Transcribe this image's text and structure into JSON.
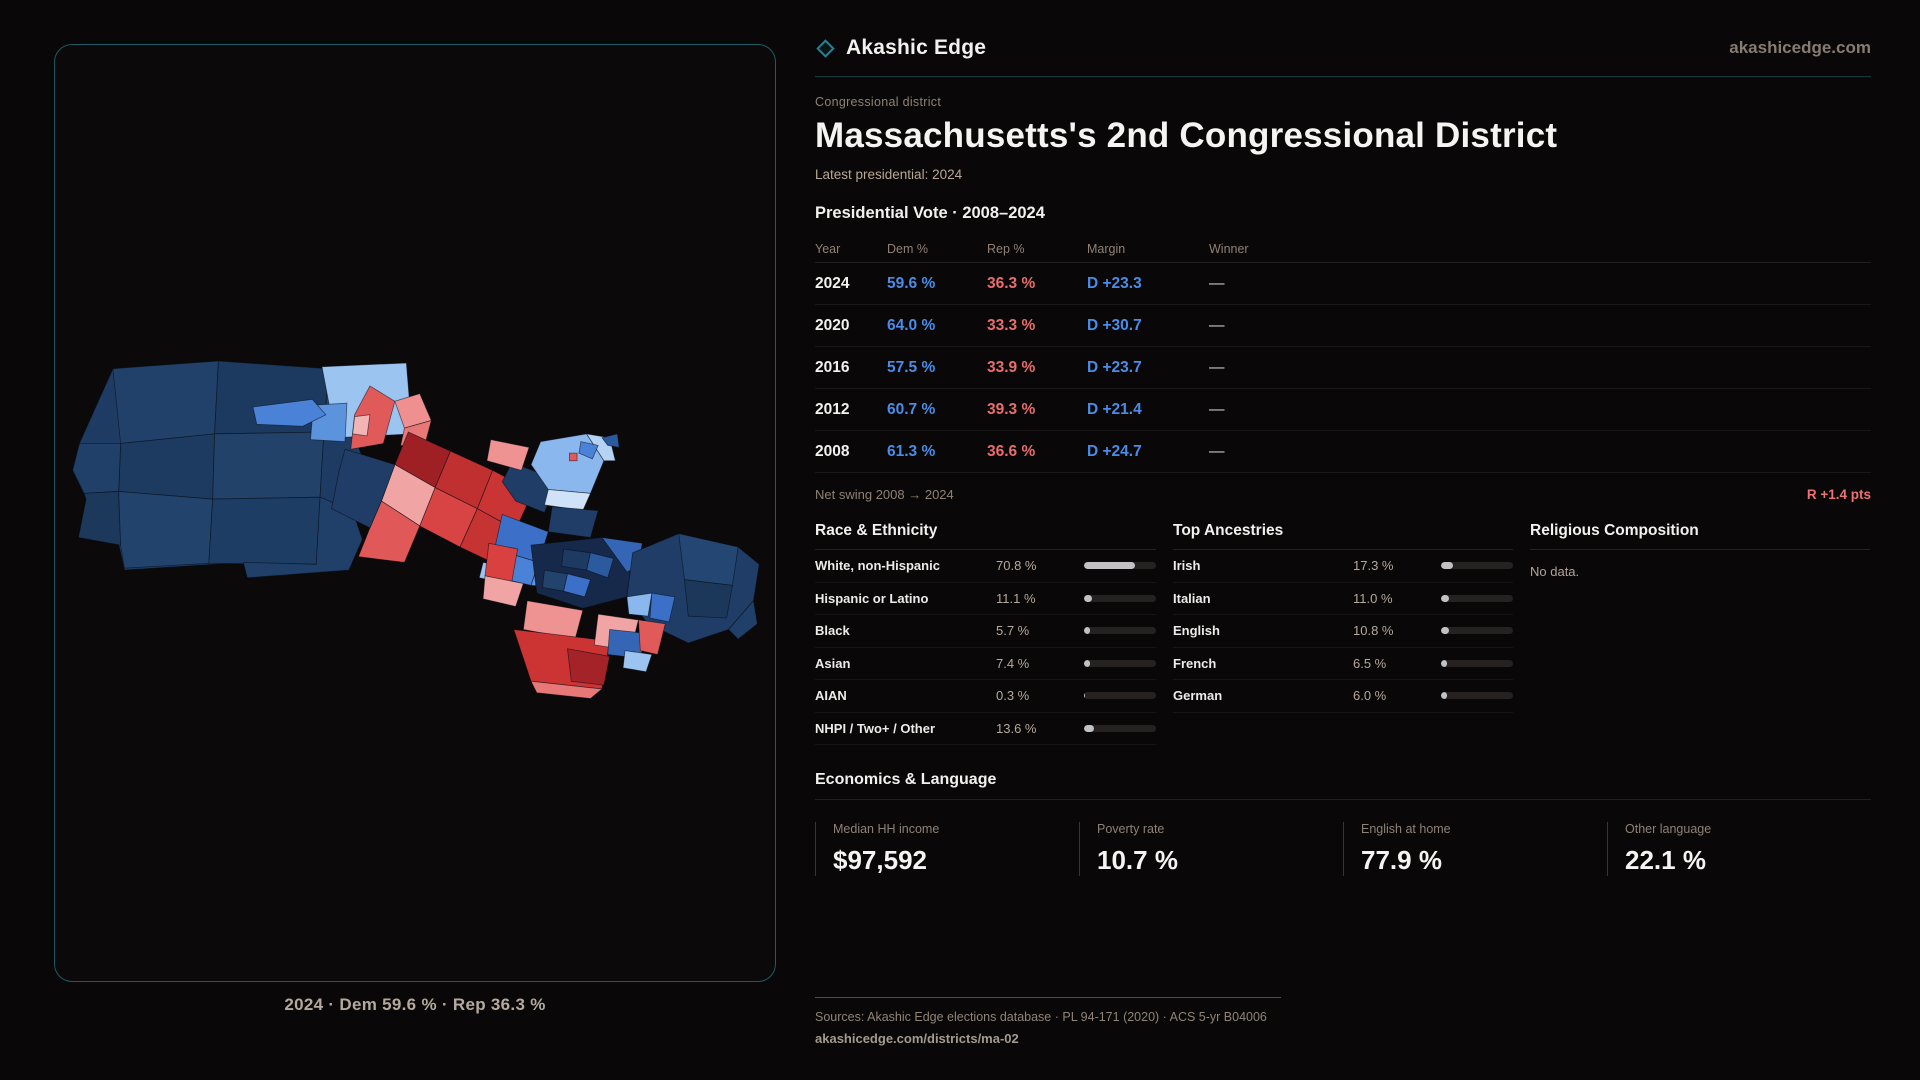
{
  "brand": {
    "name": "Akashic Edge",
    "site": "akashicedge.com",
    "accent": "#2a7f8f"
  },
  "district": {
    "eyebrow": "Congressional district",
    "title": "Massachusetts's 2nd Congressional District",
    "latest": "Latest presidential: 2024"
  },
  "map": {
    "caption": "2024 · Dem 59.6 % · Rep 36.3 %",
    "palette": {
      "dem_dark": "#1e3c63",
      "dem_mid": "#4a82d8",
      "dem_light": "#9cc4f0",
      "rep_dark": "#9e2025",
      "rep_mid": "#cc3333",
      "rep_light": "#f0a4a4",
      "panel_border": "#1d5a66"
    }
  },
  "vote_table": {
    "title": "Presidential Vote · 2008–2024",
    "columns": {
      "year": "Year",
      "dem": "Dem %",
      "rep": "Rep %",
      "margin": "Margin",
      "winner": "Winner"
    },
    "rows": [
      {
        "year": "2024",
        "dem": "59.6 %",
        "rep": "36.3 %",
        "margin": "D +23.3",
        "winner": "—"
      },
      {
        "year": "2020",
        "dem": "64.0 %",
        "rep": "33.3 %",
        "margin": "D +30.7",
        "winner": "—"
      },
      {
        "year": "2016",
        "dem": "57.5 %",
        "rep": "33.9 %",
        "margin": "D +23.7",
        "winner": "—"
      },
      {
        "year": "2012",
        "dem": "60.7 %",
        "rep": "39.3 %",
        "margin": "D +21.4",
        "winner": "—"
      },
      {
        "year": "2008",
        "dem": "61.3 %",
        "rep": "36.6 %",
        "margin": "D +24.7",
        "winner": "—"
      }
    ]
  },
  "net_swing": {
    "label": "Net swing 2008 → 2024",
    "value": "R +1.4 pts"
  },
  "race": {
    "title": "Race & Ethnicity",
    "rows": [
      {
        "label": "White, non-Hispanic",
        "value": "70.8 %",
        "pct": 70.8
      },
      {
        "label": "Hispanic or Latino",
        "value": "11.1 %",
        "pct": 11.1
      },
      {
        "label": "Black",
        "value": "5.7 %",
        "pct": 5.7
      },
      {
        "label": "Asian",
        "value": "7.4 %",
        "pct": 7.4
      },
      {
        "label": "AIAN",
        "value": "0.3 %",
        "pct": 0.3
      },
      {
        "label": "NHPI / Two+ / Other",
        "value": "13.6 %",
        "pct": 13.6
      }
    ]
  },
  "ancestries": {
    "title": "Top Ancestries",
    "rows": [
      {
        "label": "Irish",
        "value": "17.3 %",
        "pct": 17.3
      },
      {
        "label": "Italian",
        "value": "11.0 %",
        "pct": 11.0
      },
      {
        "label": "English",
        "value": "10.8 %",
        "pct": 10.8
      },
      {
        "label": "French",
        "value": "6.5 %",
        "pct": 6.5
      },
      {
        "label": "German",
        "value": "6.0 %",
        "pct": 6.0
      }
    ]
  },
  "religion": {
    "title": "Religious Composition",
    "empty": "No data."
  },
  "economics": {
    "title": "Economics & Language",
    "stats": [
      {
        "label": "Median HH income",
        "value": "$97,592"
      },
      {
        "label": "Poverty rate",
        "value": "10.7 %"
      },
      {
        "label": "English at home",
        "value": "77.9 %"
      },
      {
        "label": "Other language",
        "value": "22.1 %"
      }
    ]
  },
  "footer": {
    "sources": "Sources: Akashic Edge elections database · PL 94-171 (2020) · ACS 5-yr B04006",
    "permalink": "akashicedge.com/districts/ma-02"
  }
}
